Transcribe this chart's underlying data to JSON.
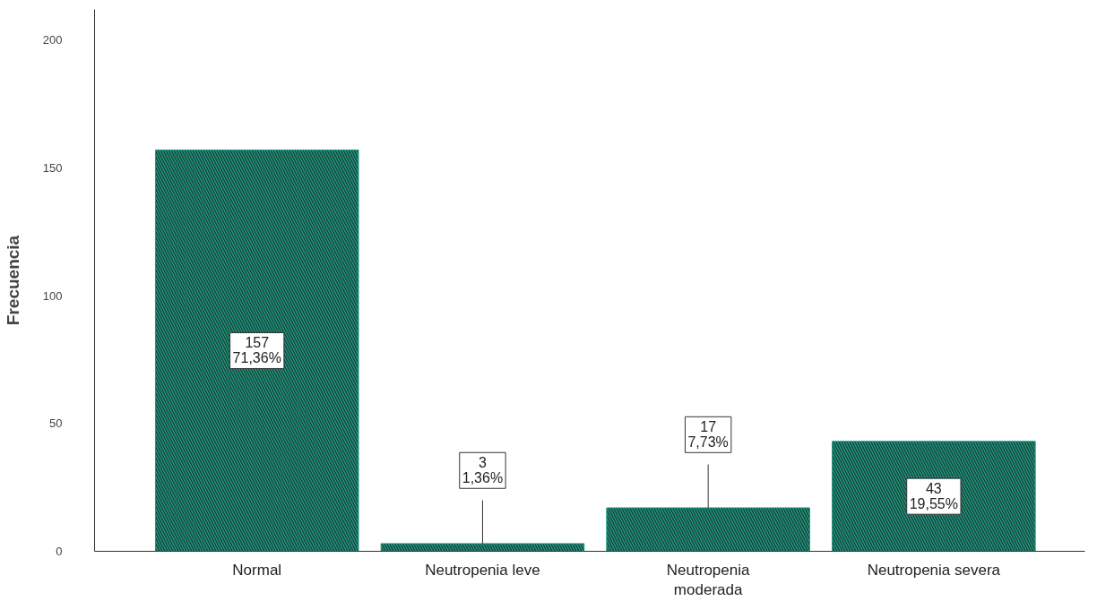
{
  "chart_data": {
    "type": "bar",
    "ylabel": "Frecuencia",
    "categories": [
      "Normal",
      "Neutropenia leve",
      "Neutropenia moderada",
      "Neutropenia severa"
    ],
    "values": [
      157,
      3,
      17,
      43
    ],
    "value_labels": [
      "157\n71,36%",
      "3\n1,36%",
      "17\n7,73%",
      "43\n19,55%"
    ],
    "color": "#1b9a80",
    "ylim": [
      0,
      212
    ],
    "yticks": [
      0,
      50,
      100,
      150,
      200
    ],
    "grid": false
  }
}
